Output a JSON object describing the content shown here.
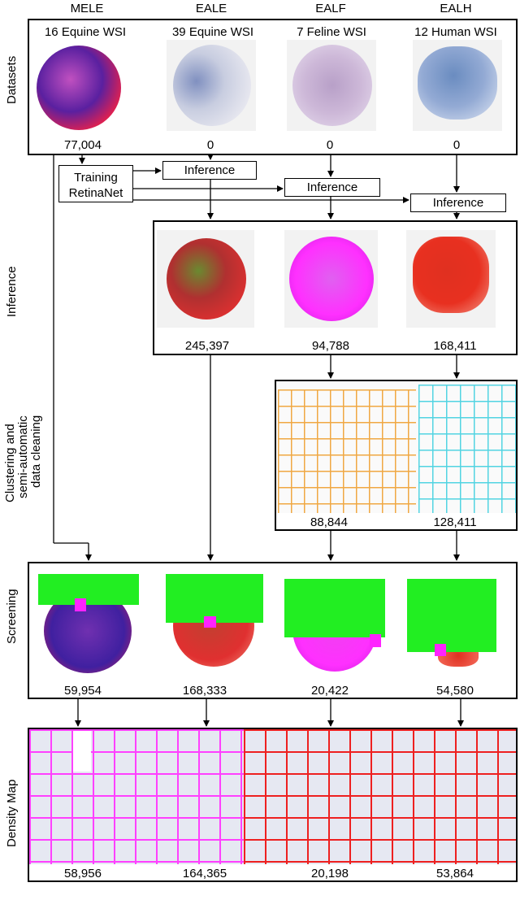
{
  "columns": [
    "MELE",
    "EALE",
    "EALF",
    "EALH"
  ],
  "datasets": [
    "16 Equine WSI",
    "39 Equine WSI",
    "7 Feline WSI",
    "12 Human WSI"
  ],
  "row_labels": {
    "datasets": "Datasets",
    "inference": "Inference",
    "clustering_line1": "Clustering and",
    "clustering_line2": "semi-automatic",
    "clustering_line3": "data cleaning",
    "screening": "Screening",
    "density": "Density Map"
  },
  "boxes": {
    "training_line1": "Training",
    "training_line2": "RetinaNet",
    "inference_box": "Inference"
  },
  "counts": {
    "datasets": [
      "77,004",
      "0",
      "0",
      "0"
    ],
    "inference": [
      "245,397",
      "94,788",
      "168,411"
    ],
    "clustering": [
      "88,844",
      "128,411"
    ],
    "screening": [
      "59,954",
      "168,333",
      "20,422",
      "54,580"
    ],
    "density": [
      "58,956",
      "164,365",
      "20,198",
      "53,864"
    ]
  },
  "colors": {
    "screening_green": "#22ee22",
    "screening_magenta": "#ff22ff",
    "cell_box_orange": "#f0a030",
    "cell_box_cyan": "#40d0e0",
    "density_magenta": "#ff40ff",
    "density_red": "#ee2020"
  }
}
